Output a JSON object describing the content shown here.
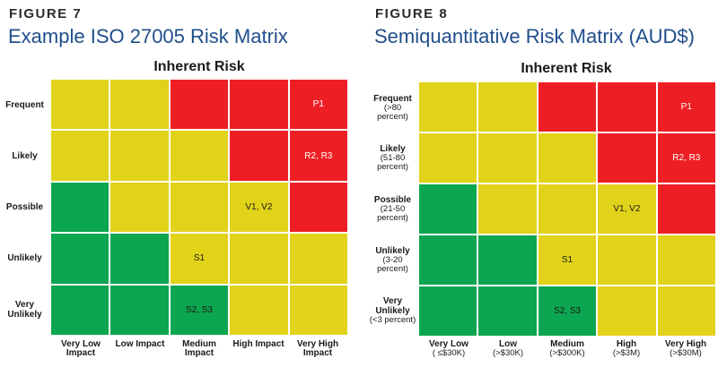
{
  "colors": {
    "red": "#ee1f24",
    "yellow": "#e1d21a",
    "green": "#0ca650",
    "title_blue": "#1f4e8c"
  },
  "figures": [
    {
      "label": "FIGURE 7",
      "title": "Example ISO 27005 Risk Matrix",
      "heading": "Inherent Risk",
      "rows": [
        {
          "name": "Frequent",
          "sub": ""
        },
        {
          "name": "Likely",
          "sub": ""
        },
        {
          "name": "Possible",
          "sub": ""
        },
        {
          "name": "Unlikely",
          "sub": ""
        },
        {
          "name": "Very Unlikely",
          "sub": ""
        }
      ],
      "cols": [
        {
          "name": "Very Low Impact",
          "sub": ""
        },
        {
          "name": "Low Impact",
          "sub": ""
        },
        {
          "name": "Medium Impact",
          "sub": ""
        },
        {
          "name": "High Impact",
          "sub": ""
        },
        {
          "name": "Very High Impact",
          "sub": ""
        }
      ],
      "cells": [
        [
          {
            "c": "yellow",
            "t": ""
          },
          {
            "c": "yellow",
            "t": ""
          },
          {
            "c": "red",
            "t": ""
          },
          {
            "c": "red",
            "t": ""
          },
          {
            "c": "red",
            "t": "P1"
          }
        ],
        [
          {
            "c": "yellow",
            "t": ""
          },
          {
            "c": "yellow",
            "t": ""
          },
          {
            "c": "yellow",
            "t": ""
          },
          {
            "c": "red",
            "t": ""
          },
          {
            "c": "red",
            "t": "R2, R3"
          }
        ],
        [
          {
            "c": "green",
            "t": ""
          },
          {
            "c": "yellow",
            "t": ""
          },
          {
            "c": "yellow",
            "t": ""
          },
          {
            "c": "yellow",
            "t": "V1, V2"
          },
          {
            "c": "red",
            "t": ""
          }
        ],
        [
          {
            "c": "green",
            "t": ""
          },
          {
            "c": "green",
            "t": ""
          },
          {
            "c": "yellow",
            "t": "S1"
          },
          {
            "c": "yellow",
            "t": ""
          },
          {
            "c": "yellow",
            "t": ""
          }
        ],
        [
          {
            "c": "green",
            "t": ""
          },
          {
            "c": "green",
            "t": ""
          },
          {
            "c": "green",
            "t": "S2, S3"
          },
          {
            "c": "yellow",
            "t": ""
          },
          {
            "c": "yellow",
            "t": ""
          }
        ]
      ]
    },
    {
      "label": "FIGURE 8",
      "title": "Semiquantitative Risk Matrix (AUD$)",
      "heading": "Inherent Risk",
      "rows": [
        {
          "name": "Frequent",
          "sub": "(>80 percent)"
        },
        {
          "name": "Likely",
          "sub": "(51-80 percent)"
        },
        {
          "name": "Possible",
          "sub": "(21-50 percent)"
        },
        {
          "name": "Unlikely",
          "sub": "(3-20 percent)"
        },
        {
          "name": "Very Unlikely",
          "sub": "(<3 percent)"
        }
      ],
      "cols": [
        {
          "name": "Very Low",
          "sub": "( ≤$30K)"
        },
        {
          "name": "Low",
          "sub": "(>$30K)"
        },
        {
          "name": "Medium",
          "sub": "(>$300K)"
        },
        {
          "name": "High",
          "sub": "(>$3M)"
        },
        {
          "name": "Very High",
          "sub": "(>$30M)"
        }
      ],
      "cells": [
        [
          {
            "c": "yellow",
            "t": ""
          },
          {
            "c": "yellow",
            "t": ""
          },
          {
            "c": "red",
            "t": ""
          },
          {
            "c": "red",
            "t": ""
          },
          {
            "c": "red",
            "t": "P1"
          }
        ],
        [
          {
            "c": "yellow",
            "t": ""
          },
          {
            "c": "yellow",
            "t": ""
          },
          {
            "c": "yellow",
            "t": ""
          },
          {
            "c": "red",
            "t": ""
          },
          {
            "c": "red",
            "t": "R2, R3"
          }
        ],
        [
          {
            "c": "green",
            "t": ""
          },
          {
            "c": "yellow",
            "t": ""
          },
          {
            "c": "yellow",
            "t": ""
          },
          {
            "c": "yellow",
            "t": "V1, V2"
          },
          {
            "c": "red",
            "t": ""
          }
        ],
        [
          {
            "c": "green",
            "t": ""
          },
          {
            "c": "green",
            "t": ""
          },
          {
            "c": "yellow",
            "t": "S1"
          },
          {
            "c": "yellow",
            "t": ""
          },
          {
            "c": "yellow",
            "t": ""
          }
        ],
        [
          {
            "c": "green",
            "t": ""
          },
          {
            "c": "green",
            "t": ""
          },
          {
            "c": "green",
            "t": "S2, S3"
          },
          {
            "c": "yellow",
            "t": ""
          },
          {
            "c": "yellow",
            "t": ""
          }
        ]
      ]
    }
  ]
}
